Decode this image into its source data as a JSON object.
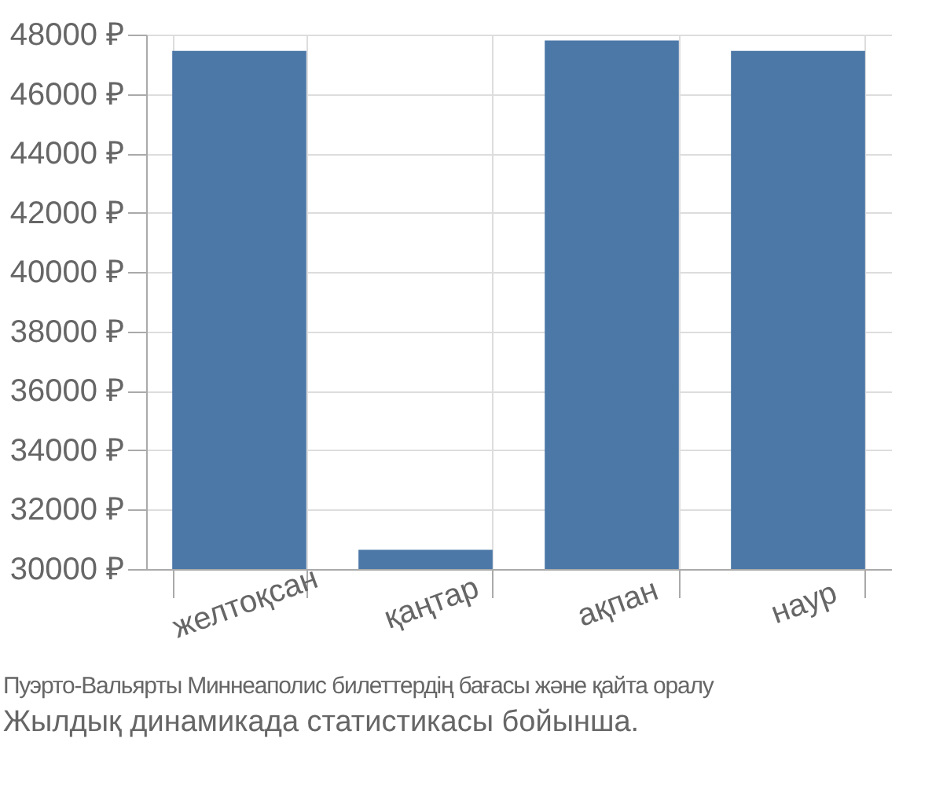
{
  "chart_data": {
    "type": "bar",
    "categories": [
      "желтоқсан",
      "қаңтар",
      "ақпан",
      "наур"
    ],
    "values": [
      47450,
      30650,
      47800,
      47450
    ],
    "color": "#4c78a8",
    "ylim": [
      30000,
      48000
    ],
    "yticks": [
      {
        "value": 30000,
        "label": "30000 ₽"
      },
      {
        "value": 32000,
        "label": "32000 ₽"
      },
      {
        "value": 34000,
        "label": "34000 ₽"
      },
      {
        "value": 36000,
        "label": "36000 ₽"
      },
      {
        "value": 38000,
        "label": "38000 ₽"
      },
      {
        "value": 40000,
        "label": "40000 ₽"
      },
      {
        "value": 42000,
        "label": "42000 ₽"
      },
      {
        "value": 44000,
        "label": "44000 ₽"
      },
      {
        "value": 46000,
        "label": "46000 ₽"
      },
      {
        "value": 48000,
        "label": "48000 ₽"
      }
    ],
    "grid": true,
    "annotations": [
      "Пуэрто-Вальярты Миннеаполис билеттердің бағасы және қайта оралу",
      "Жылдық динамикада статистикасы бойынша."
    ]
  }
}
